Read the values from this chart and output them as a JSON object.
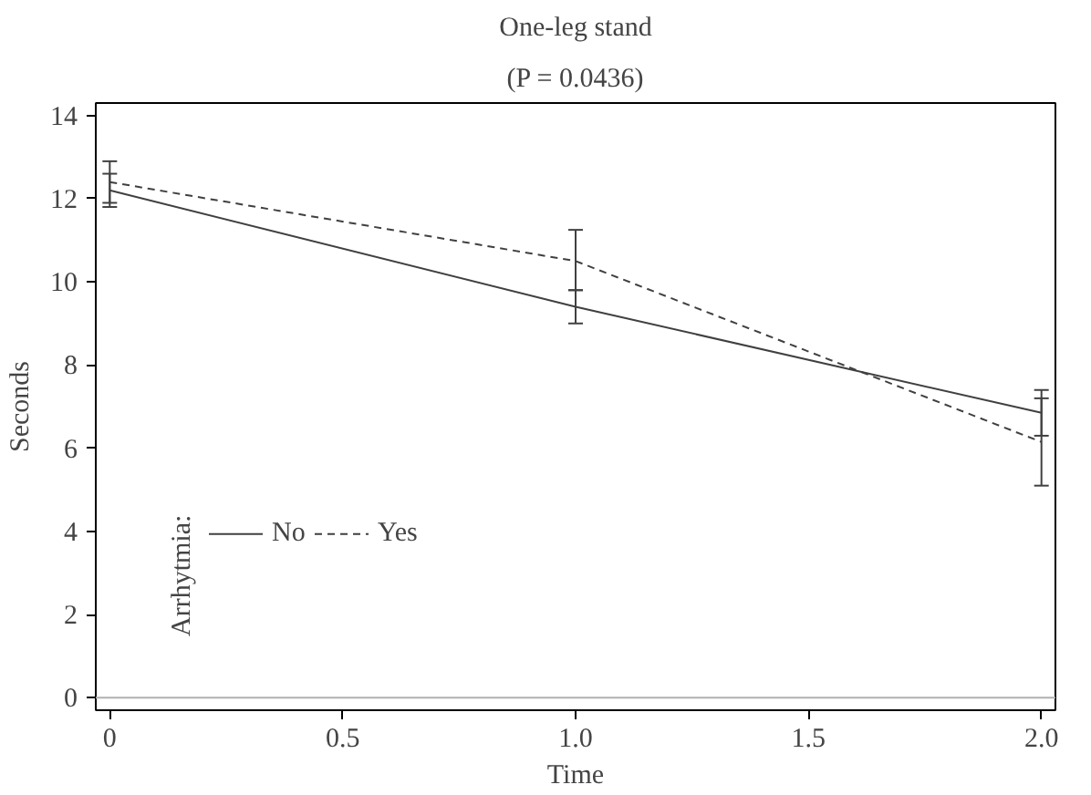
{
  "chart_data": {
    "type": "line",
    "title": "One-leg stand",
    "subtitle": "(P = 0.0436)",
    "xlabel": "Time",
    "ylabel": "Seconds",
    "legend_title": "Arrhytmia:",
    "x": [
      0,
      1,
      2
    ],
    "series": [
      {
        "name": "No",
        "color": "#404040",
        "line_style": "solid",
        "values": [
          12.2,
          9.4,
          6.85
        ],
        "errors": [
          [
            11.8,
            12.6
          ],
          [
            9.0,
            9.8
          ],
          [
            6.3,
            7.4
          ]
        ]
      },
      {
        "name": "Yes",
        "color": "#404040",
        "line_style": "dashed",
        "values": [
          12.4,
          10.5,
          6.15
        ],
        "errors": [
          [
            11.9,
            12.9
          ],
          [
            9.8,
            11.25
          ],
          [
            5.1,
            7.2
          ]
        ]
      }
    ],
    "xlim": [
      -0.03,
      2.03
    ],
    "ylim": [
      -0.3,
      14.3
    ],
    "xticks": [
      0,
      {
        "value": 0.5,
        "label": "0.5"
      },
      {
        "value": 1,
        "label": "1.0"
      },
      {
        "value": 1.5,
        "label": "1.5"
      },
      {
        "value": 2,
        "label": "2.0"
      }
    ],
    "yticks": [
      0,
      2,
      4,
      6,
      8,
      10,
      12,
      14
    ],
    "ref_lines": [
      {
        "axis": "y",
        "value": 0,
        "color": "#b0b0b0"
      }
    ],
    "grid": false,
    "legend": "bottom left",
    "marker": "none"
  }
}
